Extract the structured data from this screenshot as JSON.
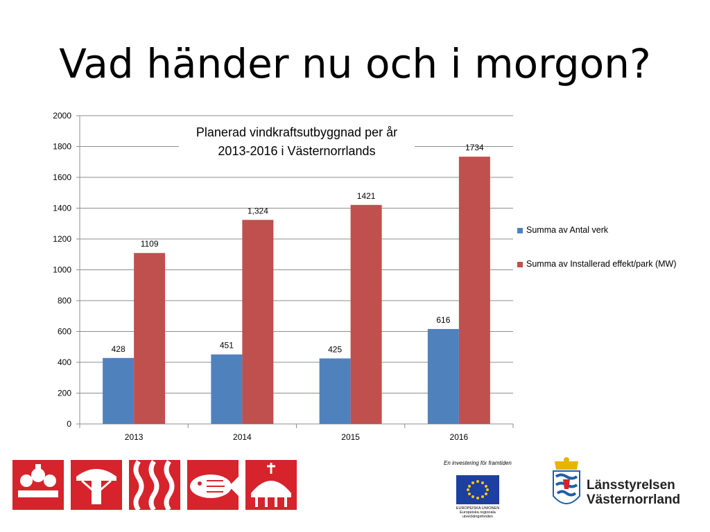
{
  "slide": {
    "title": "Vad händer nu och i morgon?"
  },
  "chart_data": {
    "type": "bar",
    "title": "Planerad vindkraftsutbyggnad per år 2013-2016 i Västernorrlands",
    "categories": [
      "2013",
      "2014",
      "2015",
      "2016"
    ],
    "ylim": [
      0,
      2000
    ],
    "yticks": [
      0,
      200,
      400,
      600,
      800,
      1000,
      1200,
      1400,
      1600,
      1800,
      2000
    ],
    "grid": true,
    "legend_position": "right",
    "series": [
      {
        "name": "Summa av Antal verk",
        "values": [
          428,
          451,
          425,
          616
        ],
        "labels": [
          "428",
          "451",
          "425",
          "616"
        ],
        "color": "#4f81bd"
      },
      {
        "name": "Summa av Installerad effekt/park (MW)",
        "values": [
          1109,
          1324,
          1421,
          1734
        ],
        "labels": [
          "1109",
          "1,324",
          "1421",
          "1734"
        ],
        "color": "#c0504d"
      }
    ]
  },
  "footer": {
    "eu_tagline": "En investering för framtiden",
    "eu_caption": "EUROPEISKA UNIONEN Europeiska regionala utvecklingsfonden",
    "authority_line1": "Länsstyrelsen",
    "authority_line2": "Västernorrland",
    "brand_red": "#d6232c",
    "eu_blue": "#1d3fa0",
    "eu_gold": "#ffcc00"
  }
}
